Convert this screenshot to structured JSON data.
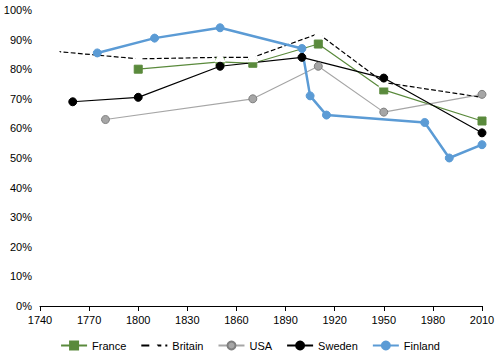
{
  "chart_data": {
    "type": "line",
    "xlim": [
      1740,
      2010
    ],
    "xticks": [
      1740,
      1770,
      1800,
      1830,
      1860,
      1890,
      1920,
      1950,
      1980,
      2010
    ],
    "ylim": [
      0,
      100
    ],
    "yticks": [
      {
        "value": 0,
        "label": "0%"
      },
      {
        "value": 10,
        "label": "10%"
      },
      {
        "value": 20,
        "label": "20%"
      },
      {
        "value": 30,
        "label": "30%"
      },
      {
        "value": 40,
        "label": "40%"
      },
      {
        "value": 50,
        "label": "50%"
      },
      {
        "value": 60,
        "label": "60%"
      },
      {
        "value": 70,
        "label": "70%"
      },
      {
        "value": 80,
        "label": "80%"
      },
      {
        "value": 90,
        "label": "90%"
      },
      {
        "value": 100,
        "label": "100%"
      }
    ],
    "grid": false,
    "legend": "bottom",
    "series": [
      {
        "name": "France",
        "color": "#5a8a3c",
        "marker": "square",
        "line_style": "solid",
        "x": [
          1800,
          1850,
          1870,
          1910,
          1950,
          2010
        ],
        "values": [
          80,
          82.5,
          82,
          88.5,
          73,
          62.5
        ]
      },
      {
        "name": "Britain",
        "color": "#000000",
        "marker": "open-triangle",
        "line_style": "dashed",
        "x": [
          1750,
          1800,
          1850,
          1870,
          1910,
          1950,
          2010
        ],
        "values": [
          86,
          83.5,
          84,
          84,
          92,
          75.5,
          70.5
        ]
      },
      {
        "name": "USA",
        "color": "#a6a6a6",
        "marker": "circle",
        "line_style": "solid",
        "x": [
          1780,
          1870,
          1910,
          1950,
          2010
        ],
        "values": [
          63,
          70,
          81,
          65.5,
          71.5
        ]
      },
      {
        "name": "Sweden",
        "color": "#000000",
        "marker": "circle",
        "line_style": "solid",
        "x": [
          1760,
          1800,
          1850,
          1900,
          1950,
          2010
        ],
        "values": [
          69,
          70.5,
          81,
          84,
          77,
          58.5
        ]
      },
      {
        "name": "Finland",
        "color": "#5b9bd5",
        "marker": "circle",
        "line_style": "solid",
        "x": [
          1775,
          1810,
          1850,
          1900,
          1905,
          1915,
          1975,
          1990,
          2010
        ],
        "values": [
          85.5,
          90.5,
          94,
          87,
          71,
          64.5,
          62,
          50,
          54.5
        ]
      }
    ]
  }
}
